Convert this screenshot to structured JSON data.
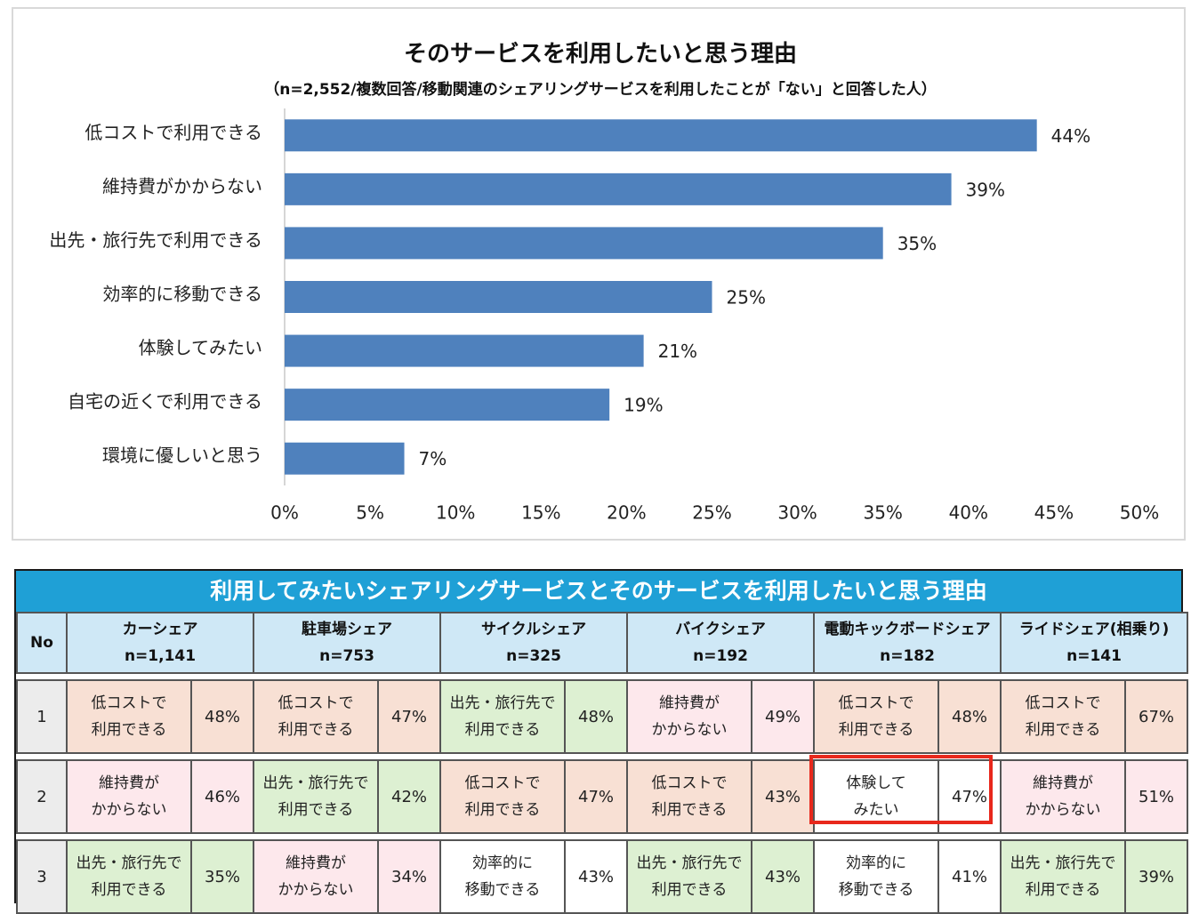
{
  "chart_data": {
    "type": "bar",
    "orientation": "horizontal",
    "title": "そのサービスを利用したいと思う理由",
    "subtitle": "（n=2,552/複数回答/移動関連のシェアリングサービスを利用したことが「ない」と回答した人）",
    "categories": [
      "低コストで利用できる",
      "維持費がかからない",
      "出先・旅行先で利用できる",
      "効率的に移動できる",
      "体験してみたい",
      "自宅の近くで利用できる",
      "環境に優しいと思う"
    ],
    "values": [
      44,
      39,
      35,
      25,
      21,
      19,
      7
    ],
    "value_labels": [
      "44%",
      "39%",
      "35%",
      "25%",
      "21%",
      "19%",
      "7%"
    ],
    "xlim": [
      0,
      50
    ],
    "xticks": [
      "0%",
      "5%",
      "10%",
      "15%",
      "20%",
      "25%",
      "30%",
      "35%",
      "40%",
      "45%",
      "50%"
    ],
    "bar_color": "#4f81bd"
  },
  "table": {
    "title": "利用してみたいシェアリングサービスとそのサービスを利用したいと思う理由",
    "no_header": "No",
    "columns": [
      {
        "name": "カーシェア",
        "n": "n=1,141"
      },
      {
        "name": "駐車場シェア",
        "n": "n=753"
      },
      {
        "name": "サイクルシェア",
        "n": "n=325"
      },
      {
        "name": "バイクシェア",
        "n": "n=192"
      },
      {
        "name": "電動キックボードシェア",
        "n": "n=182"
      },
      {
        "name": "ライドシェア(相乗り)",
        "n": "n=141"
      }
    ],
    "rows": [
      {
        "no": "1",
        "cells": [
          {
            "l1": "低コストで",
            "l2": "利用できる",
            "pct": "48%",
            "color": "peach"
          },
          {
            "l1": "低コストで",
            "l2": "利用できる",
            "pct": "47%",
            "color": "peach"
          },
          {
            "l1": "出先・旅行先で",
            "l2": "利用できる",
            "pct": "48%",
            "color": "green"
          },
          {
            "l1": "維持費が",
            "l2": "かからない",
            "pct": "49%",
            "color": "pink"
          },
          {
            "l1": "低コストで",
            "l2": "利用できる",
            "pct": "48%",
            "color": "peach"
          },
          {
            "l1": "低コストで",
            "l2": "利用できる",
            "pct": "67%",
            "color": "peach"
          }
        ]
      },
      {
        "no": "2",
        "cells": [
          {
            "l1": "維持費が",
            "l2": "かからない",
            "pct": "46%",
            "color": "pink"
          },
          {
            "l1": "出先・旅行先で",
            "l2": "利用できる",
            "pct": "42%",
            "color": "green"
          },
          {
            "l1": "低コストで",
            "l2": "利用できる",
            "pct": "47%",
            "color": "peach"
          },
          {
            "l1": "低コストで",
            "l2": "利用できる",
            "pct": "43%",
            "color": "peach"
          },
          {
            "l1": "体験して",
            "l2": "みたい",
            "pct": "47%",
            "color": "white"
          },
          {
            "l1": "維持費が",
            "l2": "かからない",
            "pct": "51%",
            "color": "pink"
          }
        ]
      },
      {
        "no": "3",
        "cells": [
          {
            "l1": "出先・旅行先で",
            "l2": "利用できる",
            "pct": "35%",
            "color": "green"
          },
          {
            "l1": "維持費が",
            "l2": "かからない",
            "pct": "34%",
            "color": "pink"
          },
          {
            "l1": "効率的に",
            "l2": "移動できる",
            "pct": "43%",
            "color": "white"
          },
          {
            "l1": "出先・旅行先で",
            "l2": "利用できる",
            "pct": "43%",
            "color": "green"
          },
          {
            "l1": "効率的に",
            "l2": "移動できる",
            "pct": "41%",
            "color": "white"
          },
          {
            "l1": "出先・旅行先で",
            "l2": "利用できる",
            "pct": "39%",
            "color": "green"
          }
        ]
      }
    ]
  }
}
